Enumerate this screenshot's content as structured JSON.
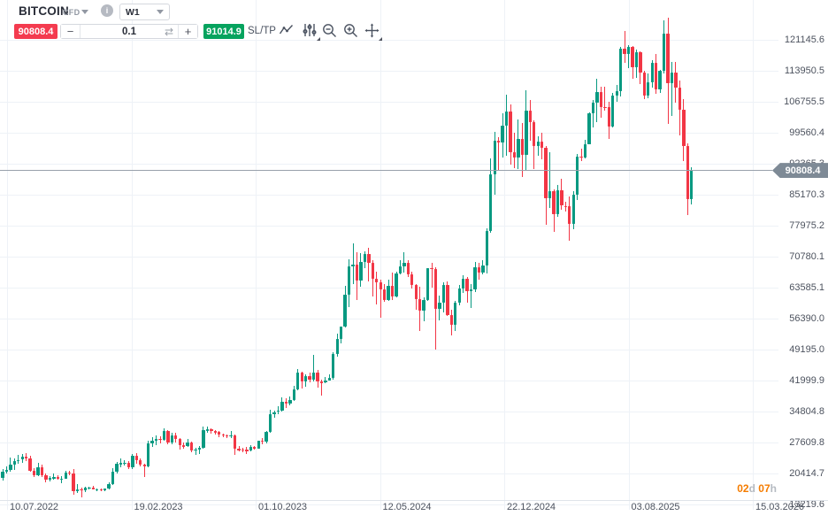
{
  "toolbar": {
    "symbol": "BITCOIN",
    "instrument_type": "CFD",
    "timeframe": "W1",
    "sell_price": "90808.4",
    "volume": "0.1",
    "buy_price": "91014.9",
    "sltp_label": "SL/TP",
    "minus_label": "−",
    "plus_label": "+",
    "swap_glyph": "⇄",
    "info_glyph": "i",
    "icons": [
      "symbol-dropdown-chevron",
      "info",
      "timeframe-dropdown-chevron",
      "volume-decrease",
      "volume-swap",
      "volume-increase",
      "line-chart",
      "indicators",
      "zoom-out",
      "zoom-in",
      "pan"
    ]
  },
  "price_line": {
    "value": "90808.4"
  },
  "countdown": {
    "days": "02",
    "days_unit": "d",
    "hours": "07",
    "hours_unit": "h"
  },
  "colors": {
    "up_candle": "#089981",
    "down_candle": "#f23645",
    "sell_badge": "#f43b4f",
    "buy_badge": "#06a35e",
    "grid": "#eef2f7",
    "axis_text": "#4c525e",
    "price_line": "#98a1ab",
    "price_tag_bg": "#7e8a96",
    "countdown_accent": "#f57c00",
    "countdown_unit": "#b5bac1"
  },
  "chart_data": {
    "type": "candlestick",
    "title": "BITCOIN CFD weekly candlestick chart",
    "symbol": "BITCOIN",
    "instrument_type": "CFD",
    "timeframe": "W1",
    "current_price": 90808.4,
    "grid": true,
    "y_axis": {
      "top_tick_value": 121145.6,
      "tick_step": 7195.1,
      "ticks": [
        "121145.6",
        "113950.5",
        "106755.5",
        "99560.4",
        "92365.3",
        "85170.3",
        "77975.2",
        "70780.1",
        "63585.1",
        "56390.0",
        "49195.0",
        "41999.9",
        "34804.8",
        "27609.8",
        "20414.7",
        "13219.6"
      ]
    },
    "x_axis": {
      "ticks": [
        "10.07.2022",
        "19.02.2023",
        "01.10.2023",
        "12.05.2024",
        "22.12.2024",
        "03.08.2025",
        "15.03.2026"
      ]
    },
    "unit_multiplier": 1000,
    "ohlc_format": [
      "open",
      "high",
      "low",
      "close"
    ],
    "ohlc": [
      [
        19.3,
        21.5,
        18.8,
        20.8
      ],
      [
        20.8,
        22.0,
        20.4,
        21.2
      ],
      [
        21.2,
        24.2,
        20.8,
        22.5
      ],
      [
        22.5,
        23.9,
        21.3,
        23.3
      ],
      [
        23.3,
        24.7,
        22.6,
        23.6
      ],
      [
        23.6,
        24.9,
        22.9,
        24.3
      ],
      [
        24.3,
        25.2,
        23.3,
        24.0
      ],
      [
        24.0,
        24.5,
        20.8,
        21.1
      ],
      [
        21.1,
        21.7,
        19.6,
        20.0
      ],
      [
        20.0,
        22.8,
        19.7,
        21.8
      ],
      [
        21.8,
        22.5,
        19.6,
        20.0
      ],
      [
        20.0,
        20.4,
        18.3,
        18.9
      ],
      [
        18.9,
        19.7,
        18.5,
        19.3
      ],
      [
        19.3,
        20.4,
        18.9,
        19.5
      ],
      [
        19.5,
        20.1,
        18.9,
        19.1
      ],
      [
        19.1,
        19.9,
        18.2,
        19.2
      ],
      [
        19.2,
        21.0,
        19.1,
        20.6
      ],
      [
        20.6,
        21.0,
        20.0,
        20.5
      ],
      [
        20.5,
        21.5,
        15.5,
        16.3
      ],
      [
        16.3,
        17.9,
        15.8,
        16.7
      ],
      [
        16.7,
        17.1,
        14.9,
        16.5
      ],
      [
        16.5,
        17.4,
        16.0,
        17.1
      ],
      [
        17.1,
        17.4,
        16.8,
        17.1
      ],
      [
        17.1,
        17.6,
        16.7,
        16.8
      ],
      [
        16.8,
        17.0,
        16.3,
        16.8
      ],
      [
        16.8,
        16.9,
        16.4,
        16.5
      ],
      [
        16.5,
        17.0,
        16.3,
        16.9
      ],
      [
        16.9,
        18.4,
        16.7,
        17.9
      ],
      [
        17.9,
        21.6,
        17.8,
        20.9
      ],
      [
        20.9,
        23.1,
        20.4,
        22.6
      ],
      [
        22.6,
        24.0,
        21.9,
        22.8
      ],
      [
        22.8,
        23.6,
        22.3,
        22.9
      ],
      [
        22.9,
        23.2,
        21.4,
        21.8
      ],
      [
        21.8,
        25.0,
        21.5,
        24.6
      ],
      [
        24.6,
        25.2,
        22.7,
        23.5
      ],
      [
        23.5,
        23.9,
        22.0,
        22.4
      ],
      [
        22.4,
        22.7,
        19.6,
        22.0
      ],
      [
        22.0,
        28.0,
        21.9,
        27.5
      ],
      [
        27.5,
        28.9,
        26.6,
        28.0
      ],
      [
        28.0,
        29.2,
        27.0,
        28.5
      ],
      [
        28.5,
        29.1,
        27.3,
        28.3
      ],
      [
        28.3,
        31.0,
        28.0,
        30.3
      ],
      [
        30.3,
        30.5,
        27.2,
        27.6
      ],
      [
        27.6,
        29.9,
        27.1,
        29.2
      ],
      [
        29.2,
        29.8,
        27.7,
        28.5
      ],
      [
        28.5,
        28.7,
        25.9,
        26.9
      ],
      [
        26.9,
        27.7,
        26.1,
        26.8
      ],
      [
        26.8,
        28.4,
        26.5,
        27.6
      ],
      [
        27.6,
        27.8,
        25.4,
        25.7
      ],
      [
        25.7,
        26.4,
        24.8,
        26.0
      ],
      [
        26.0,
        26.8,
        24.9,
        26.3
      ],
      [
        26.3,
        31.4,
        26.1,
        30.5
      ],
      [
        30.5,
        31.3,
        29.9,
        30.6
      ],
      [
        30.6,
        31.0,
        29.7,
        30.2
      ],
      [
        30.2,
        30.4,
        29.5,
        30.1
      ],
      [
        30.1,
        30.3,
        28.9,
        29.4
      ],
      [
        29.4,
        29.7,
        28.8,
        29.2
      ],
      [
        29.2,
        29.5,
        28.6,
        29.0
      ],
      [
        29.0,
        30.2,
        28.7,
        29.3
      ],
      [
        29.3,
        29.4,
        24.8,
        26.1
      ],
      [
        26.1,
        26.8,
        25.6,
        26.0
      ],
      [
        26.0,
        26.4,
        25.3,
        25.9
      ],
      [
        25.9,
        26.5,
        24.9,
        25.8
      ],
      [
        25.8,
        27.0,
        25.6,
        26.5
      ],
      [
        26.5,
        26.8,
        26.0,
        26.2
      ],
      [
        26.2,
        28.1,
        26.1,
        28.0
      ],
      [
        28.0,
        28.6,
        27.2,
        27.9
      ],
      [
        27.9,
        30.2,
        27.4,
        30.0
      ],
      [
        30.0,
        35.2,
        29.8,
        34.1
      ],
      [
        34.1,
        35.1,
        33.4,
        34.7
      ],
      [
        34.7,
        36.0,
        34.1,
        35.1
      ],
      [
        35.1,
        38.0,
        34.8,
        37.1
      ],
      [
        37.1,
        37.8,
        35.6,
        36.6
      ],
      [
        36.6,
        38.4,
        36.2,
        37.5
      ],
      [
        37.5,
        40.7,
        37.3,
        40.0
      ],
      [
        40.0,
        44.7,
        39.7,
        43.8
      ],
      [
        43.8,
        44.0,
        40.2,
        41.7
      ],
      [
        41.7,
        43.5,
        40.5,
        43.0
      ],
      [
        43.0,
        43.8,
        41.5,
        42.2
      ],
      [
        42.2,
        47.9,
        41.7,
        43.9
      ],
      [
        43.9,
        44.4,
        40.3,
        41.7
      ],
      [
        41.7,
        42.2,
        38.5,
        41.6
      ],
      [
        41.6,
        42.8,
        41.4,
        42.0
      ],
      [
        42.0,
        43.5,
        41.9,
        42.6
      ],
      [
        42.6,
        48.6,
        42.2,
        48.2
      ],
      [
        48.2,
        52.9,
        47.6,
        51.7
      ],
      [
        51.7,
        54.0,
        50.6,
        54.5
      ],
      [
        54.5,
        64.0,
        54.4,
        62.0
      ],
      [
        62.0,
        70.2,
        59.0,
        68.5
      ],
      [
        68.5,
        73.8,
        64.5,
        69.0
      ],
      [
        69.0,
        71.8,
        60.8,
        65.3
      ],
      [
        65.3,
        71.6,
        63.8,
        69.6
      ],
      [
        69.6,
        72.0,
        68.1,
        71.3
      ],
      [
        71.3,
        72.8,
        65.1,
        69.4
      ],
      [
        69.4,
        70.0,
        61.6,
        65.7
      ],
      [
        65.7,
        67.2,
        59.6,
        64.9
      ],
      [
        64.9,
        65.5,
        56.5,
        63.1
      ],
      [
        63.1,
        64.4,
        60.2,
        60.8
      ],
      [
        60.8,
        65.5,
        60.6,
        63.9
      ],
      [
        63.9,
        67.0,
        60.8,
        61.5
      ],
      [
        61.5,
        67.3,
        61.3,
        66.9
      ],
      [
        66.9,
        70.0,
        66.6,
        68.5
      ],
      [
        68.5,
        71.9,
        67.1,
        69.3
      ],
      [
        69.3,
        70.0,
        66.0,
        66.7
      ],
      [
        66.7,
        67.3,
        63.4,
        64.3
      ],
      [
        64.3,
        64.5,
        58.4,
        61.0
      ],
      [
        61.0,
        63.8,
        53.5,
        58.2
      ],
      [
        58.2,
        61.4,
        55.8,
        60.8
      ],
      [
        60.8,
        68.2,
        60.6,
        68.2
      ],
      [
        68.2,
        69.4,
        63.5,
        68.0
      ],
      [
        68.0,
        68.3,
        49.1,
        58.7
      ],
      [
        58.7,
        61.8,
        55.9,
        60.0
      ],
      [
        60.0,
        64.9,
        57.9,
        64.1
      ],
      [
        64.1,
        65.0,
        57.1,
        57.3
      ],
      [
        57.3,
        58.5,
        52.5,
        54.9
      ],
      [
        54.9,
        60.6,
        53.6,
        60.0
      ],
      [
        60.0,
        64.1,
        59.4,
        63.3
      ],
      [
        63.3,
        66.5,
        62.3,
        65.6
      ],
      [
        65.6,
        66.1,
        60.0,
        62.8
      ],
      [
        62.8,
        64.5,
        58.9,
        63.2
      ],
      [
        63.2,
        69.5,
        62.5,
        68.4
      ],
      [
        68.4,
        69.3,
        65.5,
        67.0
      ],
      [
        67.0,
        69.9,
        66.6,
        68.8
      ],
      [
        68.8,
        77.3,
        66.8,
        76.7
      ],
      [
        76.7,
        93.5,
        76.4,
        90.0
      ],
      [
        90.0,
        99.8,
        85.1,
        97.7
      ],
      [
        97.7,
        98.6,
        90.8,
        97.2
      ],
      [
        97.2,
        104.1,
        93.7,
        101.2
      ],
      [
        101.2,
        108.3,
        94.2,
        104.4
      ],
      [
        104.4,
        106.1,
        92.2,
        95.1
      ],
      [
        95.1,
        99.5,
        91.3,
        93.7
      ],
      [
        93.7,
        102.7,
        91.2,
        98.2
      ],
      [
        98.2,
        101.9,
        89.2,
        94.5
      ],
      [
        94.5,
        109.4,
        90.7,
        104.7
      ],
      [
        104.7,
        107.2,
        97.8,
        102.1
      ],
      [
        102.1,
        102.5,
        91.2,
        96.5
      ],
      [
        96.5,
        98.8,
        94.3,
        97.5
      ],
      [
        97.5,
        99.5,
        93.3,
        96.1
      ],
      [
        96.1,
        96.5,
        78.2,
        84.4
      ],
      [
        84.4,
        95.0,
        82.1,
        86.0
      ],
      [
        86.0,
        86.5,
        76.6,
        80.7
      ],
      [
        80.7,
        87.5,
        80.0,
        86.1
      ],
      [
        86.1,
        88.8,
        81.6,
        82.6
      ],
      [
        82.6,
        83.5,
        81.3,
        82.4
      ],
      [
        82.4,
        84.7,
        74.5,
        78.4
      ],
      [
        78.4,
        86.0,
        77.1,
        85.2
      ],
      [
        85.2,
        94.7,
        83.9,
        94.0
      ],
      [
        94.0,
        95.9,
        92.9,
        93.8
      ],
      [
        93.8,
        97.9,
        93.6,
        96.9
      ],
      [
        96.9,
        104.3,
        96.8,
        104.1
      ],
      [
        104.1,
        107.1,
        100.7,
        106.5
      ],
      [
        106.5,
        112.0,
        102.1,
        109.0
      ],
      [
        109.0,
        110.3,
        103.1,
        105.6
      ],
      [
        105.6,
        110.3,
        104.6,
        105.5
      ],
      [
        105.5,
        106.8,
        98.2,
        101.0
      ],
      [
        101.0,
        108.8,
        100.7,
        108.2
      ],
      [
        108.2,
        110.6,
        106.8,
        109.2
      ],
      [
        109.2,
        119.5,
        107.9,
        119.0
      ],
      [
        119.0,
        123.1,
        115.7,
        117.9
      ],
      [
        117.9,
        120.0,
        114.5,
        119.4
      ],
      [
        119.4,
        119.7,
        112.0,
        114.8
      ],
      [
        114.8,
        118.9,
        112.4,
        118.3
      ],
      [
        118.3,
        118.5,
        110.8,
        113.5
      ],
      [
        113.5,
        114.0,
        107.3,
        108.2
      ],
      [
        108.2,
        113.3,
        107.6,
        111.2
      ],
      [
        111.2,
        116.5,
        110.0,
        115.9
      ],
      [
        115.9,
        117.8,
        108.7,
        109.7
      ],
      [
        109.7,
        114.1,
        108.9,
        114.0
      ],
      [
        114.0,
        125.7,
        113.4,
        122.6
      ],
      [
        122.6,
        126.3,
        101.7,
        111.0
      ],
      [
        111.0,
        116.0,
        103.5,
        113.5
      ],
      [
        113.5,
        116.1,
        106.5,
        110.0
      ],
      [
        110.0,
        111.7,
        98.9,
        105.0
      ],
      [
        105.0,
        107.4,
        93.0,
        96.4
      ],
      [
        96.4,
        97.0,
        80.5,
        84.1
      ],
      [
        84.1,
        91.5,
        83.0,
        90.8084
      ]
    ]
  }
}
